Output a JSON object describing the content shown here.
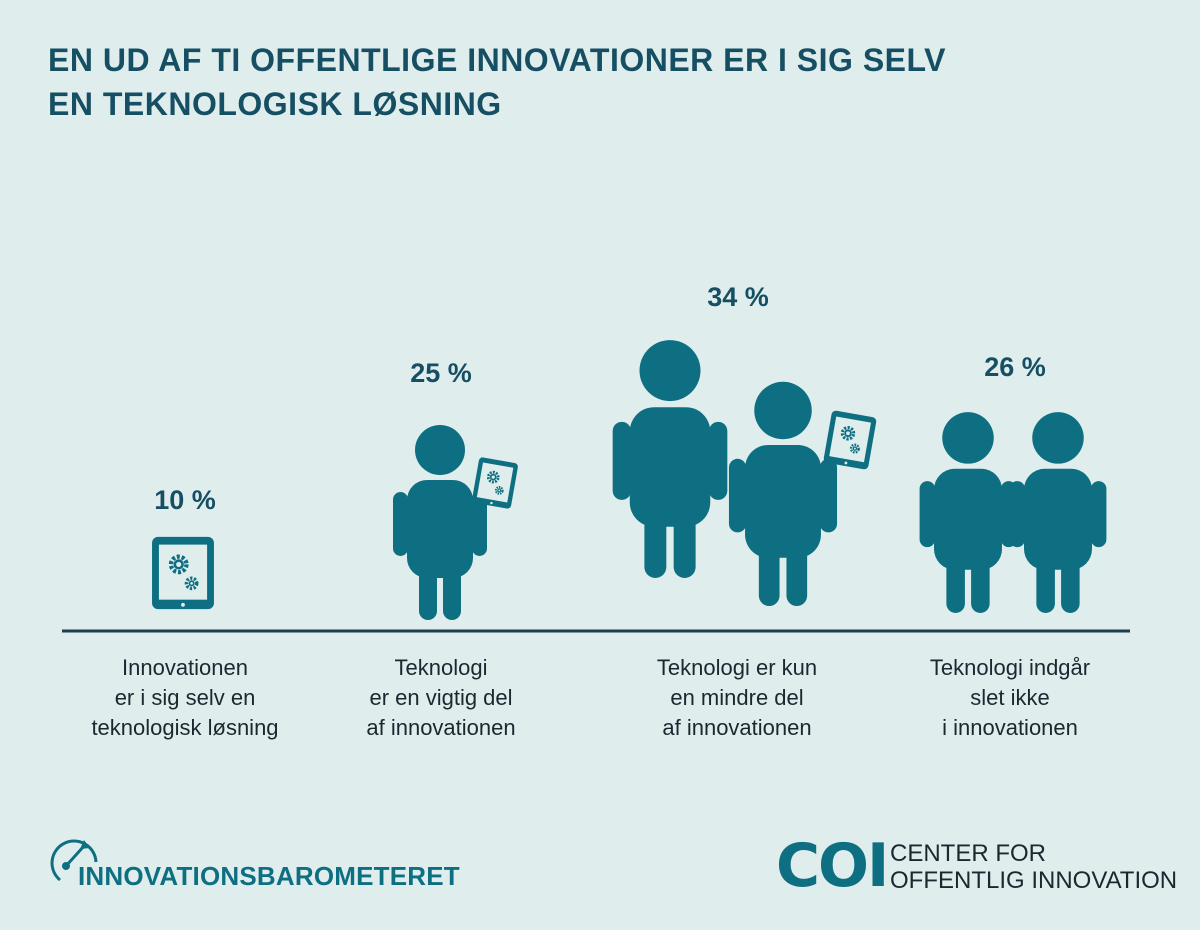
{
  "title": {
    "line1": "EN UD AF TI OFFENTLIGE INNOVATIONER ER I SIG SELV",
    "line2": "EN TEKNOLOGISK LØSNING"
  },
  "colors": {
    "background": "#dfeeed",
    "figure": "#0f6f82",
    "title": "#164f63",
    "text": "#1c2730"
  },
  "chart_data": {
    "type": "bar",
    "categories": [
      "Innovationen er i sig selv en teknologisk løsning",
      "Teknologi er en vigtig del af innovationen",
      "Teknologi er kun en mindre del af innovationen",
      "Teknologi indgår slet ikke i innovationen"
    ],
    "values": [
      10,
      25,
      34,
      26
    ],
    "value_labels": [
      "10 %",
      "25 %",
      "34 %",
      "26 %"
    ],
    "label_lines": [
      [
        "Innovationen",
        "er i sig selv en",
        "teknologisk løsning"
      ],
      [
        "Teknologi",
        "er en vigtig del",
        "af innovationen"
      ],
      [
        "Teknologi er kun",
        "en mindre del",
        "af innovationen"
      ],
      [
        "Teknologi indgår",
        "slet ikke",
        "i innovationen"
      ]
    ],
    "icons": [
      "tablet-gears-icon",
      "person-with-tablet-icon",
      "person-and-person-with-tablet-icon",
      "two-persons-icon"
    ],
    "grid": false
  },
  "footer": {
    "brand_left": "INNOVATIONSBAROMETERET",
    "logo_mark": "COI",
    "logo_line1": "CENTER FOR",
    "logo_line2": "OFFENTLIG INNOVATION"
  }
}
